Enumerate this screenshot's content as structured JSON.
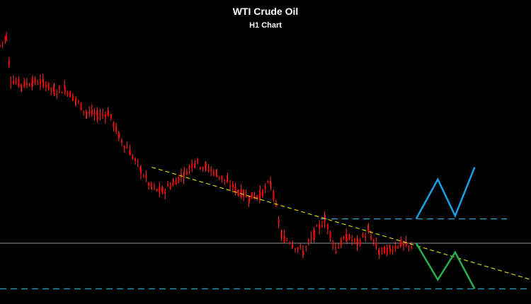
{
  "chart_data": {
    "type": "candlestick",
    "title": "WTI Crude Oil",
    "subtitle": "H1 Chart",
    "xlabel": "",
    "ylabel": "",
    "grid": false,
    "legend": "none",
    "colors": {
      "background": "#000000",
      "candles": "#ff0000",
      "wicks": "#ff3030",
      "trendline": "#e6e000",
      "support_resistance": "#2aa3c9",
      "current_price": "#b8c4d8",
      "bullish_projection": "#1a9fe6",
      "bearish_projection": "#22b14c"
    },
    "price_series": [
      {
        "x": 0,
        "y": 0.85
      },
      {
        "x": 3,
        "y": 0.88
      },
      {
        "x": 5,
        "y": 0.74
      },
      {
        "x": 10,
        "y": 0.72
      },
      {
        "x": 15,
        "y": 0.73
      },
      {
        "x": 20,
        "y": 0.73
      },
      {
        "x": 25,
        "y": 0.7
      },
      {
        "x": 30,
        "y": 0.71
      },
      {
        "x": 35,
        "y": 0.67
      },
      {
        "x": 40,
        "y": 0.63
      },
      {
        "x": 45,
        "y": 0.62
      },
      {
        "x": 50,
        "y": 0.63
      },
      {
        "x": 55,
        "y": 0.55
      },
      {
        "x": 60,
        "y": 0.5
      },
      {
        "x": 65,
        "y": 0.44
      },
      {
        "x": 70,
        "y": 0.38
      },
      {
        "x": 75,
        "y": 0.37
      },
      {
        "x": 80,
        "y": 0.4
      },
      {
        "x": 85,
        "y": 0.43
      },
      {
        "x": 90,
        "y": 0.47
      },
      {
        "x": 95,
        "y": 0.45
      },
      {
        "x": 100,
        "y": 0.43
      },
      {
        "x": 105,
        "y": 0.4
      },
      {
        "x": 110,
        "y": 0.37
      },
      {
        "x": 115,
        "y": 0.35
      },
      {
        "x": 120,
        "y": 0.36
      },
      {
        "x": 125,
        "y": 0.4
      },
      {
        "x": 130,
        "y": 0.22
      },
      {
        "x": 135,
        "y": 0.2
      },
      {
        "x": 140,
        "y": 0.17
      },
      {
        "x": 145,
        "y": 0.23
      },
      {
        "x": 150,
        "y": 0.28
      },
      {
        "x": 155,
        "y": 0.18
      },
      {
        "x": 160,
        "y": 0.22
      },
      {
        "x": 165,
        "y": 0.2
      },
      {
        "x": 170,
        "y": 0.24
      },
      {
        "x": 175,
        "y": 0.17
      },
      {
        "x": 180,
        "y": 0.18
      },
      {
        "x": 185,
        "y": 0.2
      },
      {
        "x": 190,
        "y": 0.18
      }
    ],
    "trendline": {
      "x": [
        70,
        245
      ],
      "y": [
        0.45,
        0.08
      ]
    },
    "resistance_level": {
      "x": [
        148,
        234
      ],
      "y": 0.28
    },
    "current_price_level": 0.2,
    "support_level": 0.05,
    "bullish_projection": [
      {
        "x": 192,
        "y": 0.28
      },
      {
        "x": 202,
        "y": 0.41
      },
      {
        "x": 210,
        "y": 0.29
      },
      {
        "x": 219,
        "y": 0.45
      }
    ],
    "bearish_projection": [
      {
        "x": 192,
        "y": 0.2
      },
      {
        "x": 202,
        "y": 0.08
      },
      {
        "x": 210,
        "y": 0.17
      },
      {
        "x": 219,
        "y": 0.05
      }
    ],
    "xlim": [
      0,
      245
    ],
    "ylim": [
      0,
      1
    ]
  }
}
